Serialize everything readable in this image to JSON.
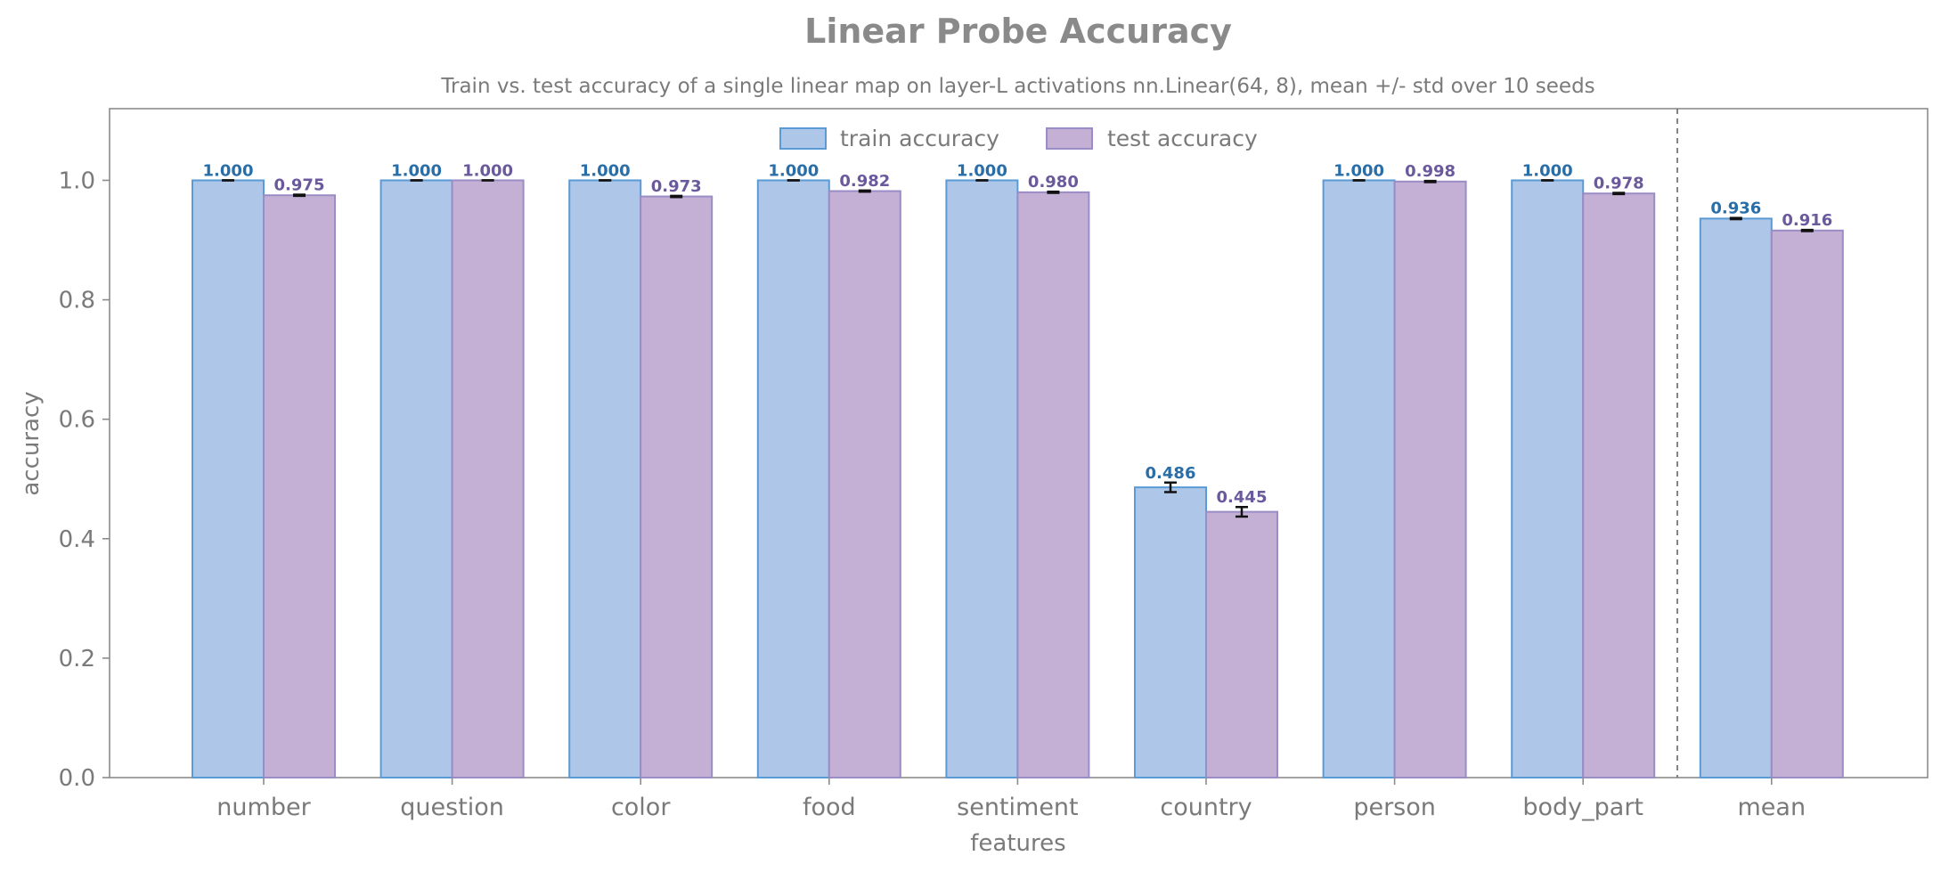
{
  "chart_data": {
    "type": "bar",
    "title": "Linear Probe Accuracy",
    "subtitle": "Train vs. test accuracy of a single linear map on layer-L activations  nn.Linear(64, 8), mean +/- std over 10 seeds",
    "xlabel": "features",
    "ylabel": "accuracy",
    "ylim": [
      0,
      1.12
    ],
    "yticks": [
      "0.0",
      "0.2",
      "0.4",
      "0.6",
      "0.8",
      "1.0"
    ],
    "categories": [
      "number",
      "question",
      "color",
      "food",
      "sentiment",
      "country",
      "person",
      "body_part",
      "mean"
    ],
    "separator_before": "mean",
    "legend_position": "top-center",
    "grid": false,
    "series": [
      {
        "name": "train accuracy",
        "values": [
          1.0,
          1.0,
          1.0,
          1.0,
          1.0,
          0.486,
          1.0,
          1.0,
          0.936
        ],
        "errors": [
          0.0,
          0.0,
          0.0,
          0.0,
          0.0,
          0.008,
          0.0,
          0.0,
          0.001
        ],
        "labels": [
          "1.000",
          "1.000",
          "1.000",
          "1.000",
          "1.000",
          "0.486",
          "1.000",
          "1.000",
          "0.936"
        ],
        "fill": "#aec7e8",
        "edge": "#5b9bd5",
        "label_color": "#2a6ea8"
      },
      {
        "name": "test accuracy",
        "values": [
          0.975,
          1.0,
          0.973,
          0.982,
          0.98,
          0.445,
          0.998,
          0.978,
          0.916
        ],
        "errors": [
          0.001,
          0.0,
          0.001,
          0.001,
          0.001,
          0.008,
          0.001,
          0.001,
          0.001
        ],
        "labels": [
          "0.975",
          "1.000",
          "0.973",
          "0.982",
          "0.980",
          "0.445",
          "0.998",
          "0.978",
          "0.916"
        ],
        "fill": "#c5b0d5",
        "edge": "#9a8cc4",
        "label_color": "#6a5a9c"
      }
    ]
  }
}
